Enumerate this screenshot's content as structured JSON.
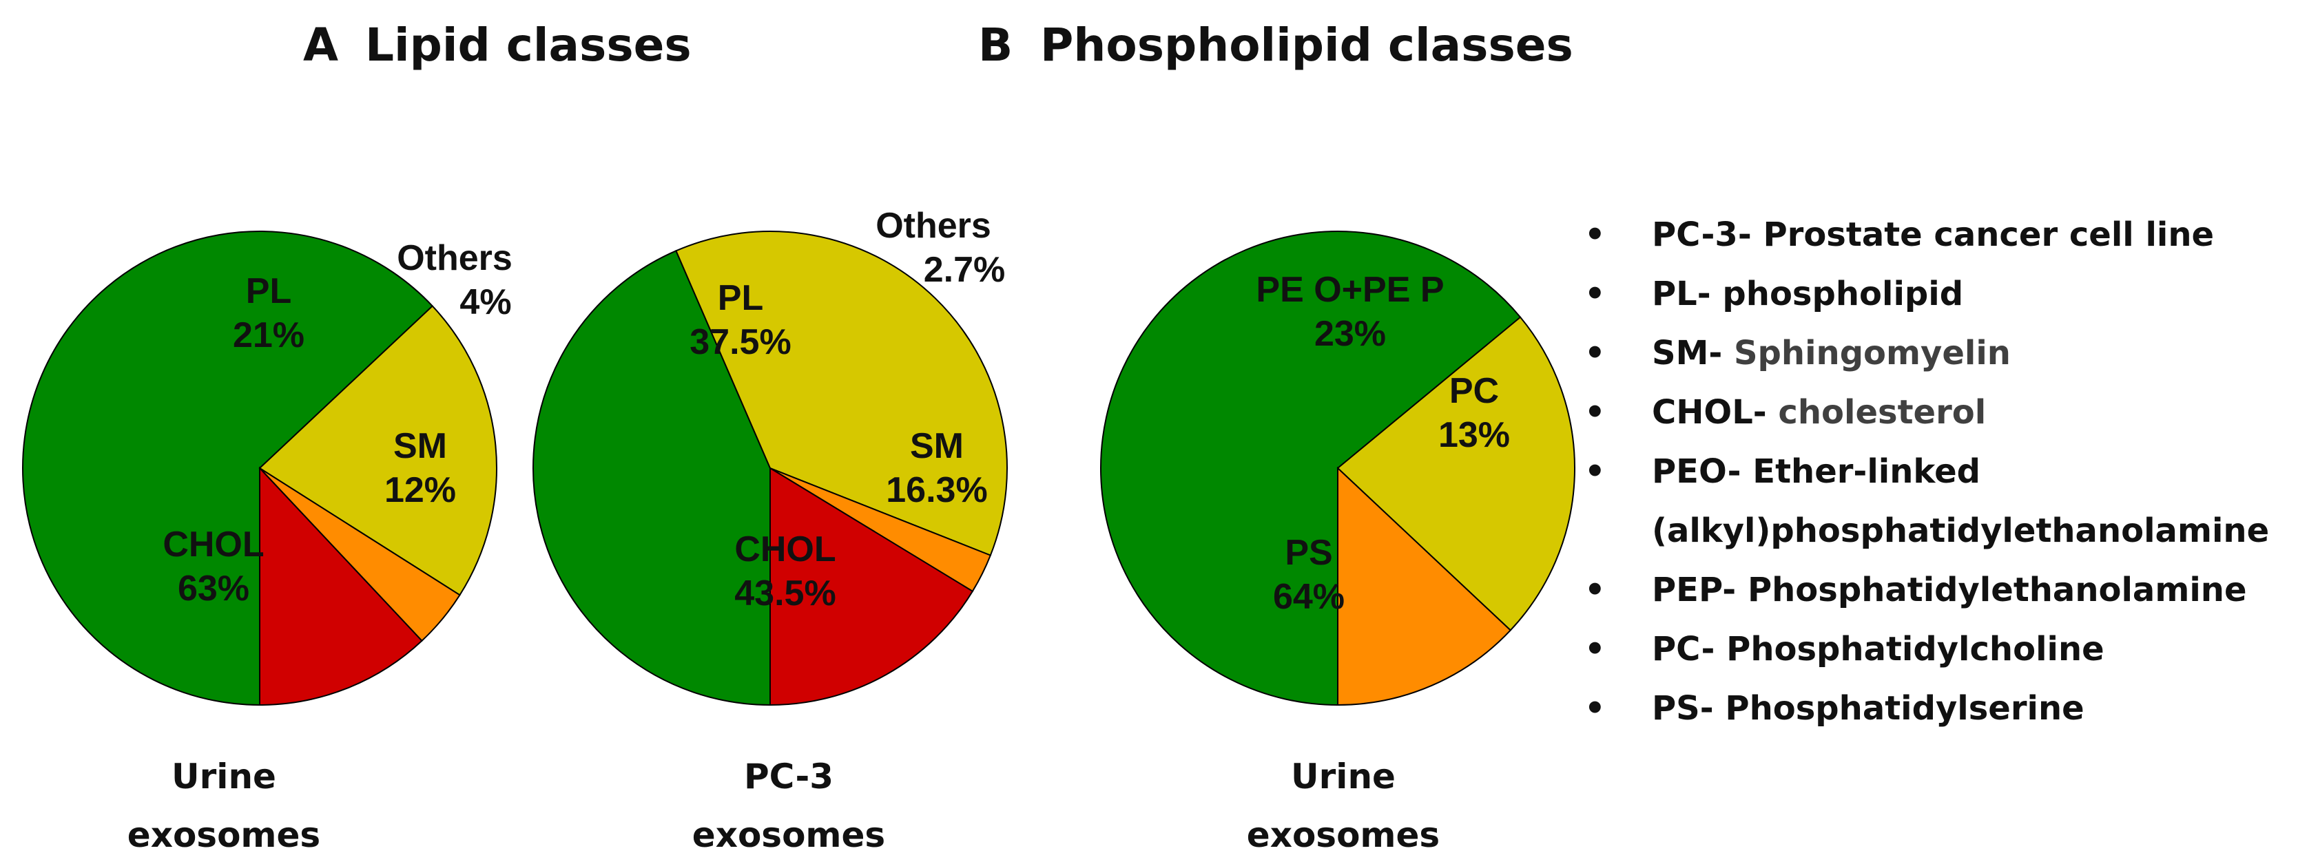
{
  "panels": [
    {
      "letter": "A",
      "title": "Lipid classes"
    },
    {
      "letter": "B",
      "title": "Phospholipid classes"
    }
  ],
  "chart_data": [
    {
      "type": "pie",
      "panel": "A",
      "caption_lines": [
        "Urine",
        "exosomes"
      ],
      "slices": [
        {
          "label": "CHOL",
          "value": 63,
          "display": "63%",
          "color": "#008800"
        },
        {
          "label": "PL",
          "value": 21,
          "display": "21%",
          "color": "#d6c800"
        },
        {
          "label": "Others",
          "value": 4,
          "display": "4%",
          "color": "#ff8c00"
        },
        {
          "label": "SM",
          "value": 12,
          "display": "12%",
          "color": "#d00000"
        }
      ]
    },
    {
      "type": "pie",
      "panel": "A",
      "caption_lines": [
        "PC-3",
        "exosomes"
      ],
      "slices": [
        {
          "label": "CHOL",
          "value": 43.5,
          "display": "43.5%",
          "color": "#008800"
        },
        {
          "label": "PL",
          "value": 37.5,
          "display": "37.5%",
          "color": "#d6c800"
        },
        {
          "label": "Others",
          "value": 2.7,
          "display": "2.7%",
          "color": "#ff8c00"
        },
        {
          "label": "SM",
          "value": 16.3,
          "display": "16.3%",
          "color": "#d00000"
        }
      ]
    },
    {
      "type": "pie",
      "panel": "B",
      "caption_lines": [
        "Urine",
        "exosomes"
      ],
      "slices": [
        {
          "label": "PS",
          "value": 64,
          "display": "64%",
          "color": "#008800"
        },
        {
          "label": "PE O+PE P",
          "value": 23,
          "display": "23%",
          "color": "#d6c800"
        },
        {
          "label": "PC",
          "value": 13,
          "display": "13%",
          "color": "#ff8c00"
        }
      ]
    }
  ],
  "legend": [
    {
      "abbr": "PC-3-",
      "desc": "Prostate cancer cell line",
      "gray": false
    },
    {
      "abbr": "PL-",
      "desc": "phospholipid",
      "gray": false
    },
    {
      "abbr": "SM-",
      "desc": "Sphingomyelin",
      "gray": true
    },
    {
      "abbr": "CHOL-",
      "desc": "cholesterol",
      "gray": true
    },
    {
      "abbr": "PEO-",
      "desc": "Ether-linked (alkyl)phosphatidylethanolamine",
      "gray": false
    },
    {
      "abbr": "PEP-",
      "desc": "Phosphatidylethanolamine",
      "gray": false
    },
    {
      "abbr": "PC-",
      "desc": "Phosphatidylcholine",
      "gray": false
    },
    {
      "abbr": "PS-",
      "desc": "Phosphatidylserine",
      "gray": false
    }
  ]
}
